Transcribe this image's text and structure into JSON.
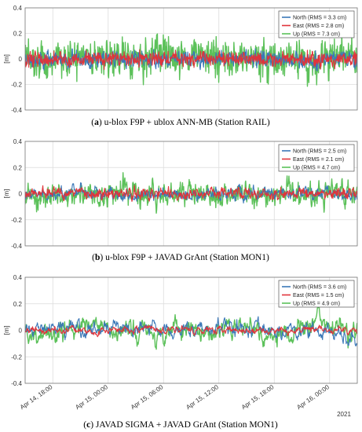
{
  "colors": {
    "north": "#3b78b8",
    "east": "#e0343b",
    "up": "#5cc15a"
  },
  "x_tick_labels": [
    "Apr 14, 18:00",
    "Apr 15, 00:00",
    "Apr 15, 06:00",
    "Apr 15, 12:00",
    "Apr 15, 18:00",
    "Apr 16, 00:00"
  ],
  "year_label": "2021",
  "chart_data": [
    {
      "type": "line",
      "ylabel": "[m]",
      "ylim": [
        -0.4,
        0.4
      ],
      "yticks": [
        "0.4",
        "0.2",
        "0",
        "-0.2",
        "-0.4"
      ],
      "grid": true,
      "legend_position": "top-right",
      "caption_label": "a",
      "caption_text": "u-blox F9P + ublox ANN-MB (Station RAIL)",
      "series": [
        {
          "name": "North (RMS = 3.3 cm)",
          "key": "north",
          "rms_cm": 3.3
        },
        {
          "name": "East (RMS = 2.8 cm)",
          "key": "east",
          "rms_cm": 2.8
        },
        {
          "name": "Up (RMS = 7.3 cm)",
          "key": "up",
          "rms_cm": 7.3
        }
      ]
    },
    {
      "type": "line",
      "ylabel": "[m]",
      "ylim": [
        -0.4,
        0.4
      ],
      "yticks": [
        "0.4",
        "0.2",
        "0",
        "-0.2",
        "-0.4"
      ],
      "grid": true,
      "legend_position": "top-right",
      "caption_label": "b",
      "caption_text": "u-blox F9P + JAVAD GrAnt (Station MON1)",
      "series": [
        {
          "name": "North (RMS = 2.5 cm)",
          "key": "north",
          "rms_cm": 2.5
        },
        {
          "name": "East (RMS = 2.1 cm)",
          "key": "east",
          "rms_cm": 2.1
        },
        {
          "name": "Up (RMS = 4.7 cm)",
          "key": "up",
          "rms_cm": 4.7
        }
      ]
    },
    {
      "type": "line",
      "ylabel": "[m]",
      "ylim": [
        -0.4,
        0.4
      ],
      "yticks": [
        "0.4",
        "0.2",
        "0",
        "-0.2",
        "-0.4"
      ],
      "grid": true,
      "legend_position": "top-right",
      "caption_label": "c",
      "caption_text": "JAVAD SIGMA + JAVAD GrAnt (Station MON1)",
      "series": [
        {
          "name": "North (RMS = 3.6 cm)",
          "key": "north",
          "rms_cm": 3.6
        },
        {
          "name": "East (RMS = 1.5 cm)",
          "key": "east",
          "rms_cm": 1.5
        },
        {
          "name": "Up (RMS = 4.9 cm)",
          "key": "up",
          "rms_cm": 4.9
        }
      ]
    }
  ]
}
